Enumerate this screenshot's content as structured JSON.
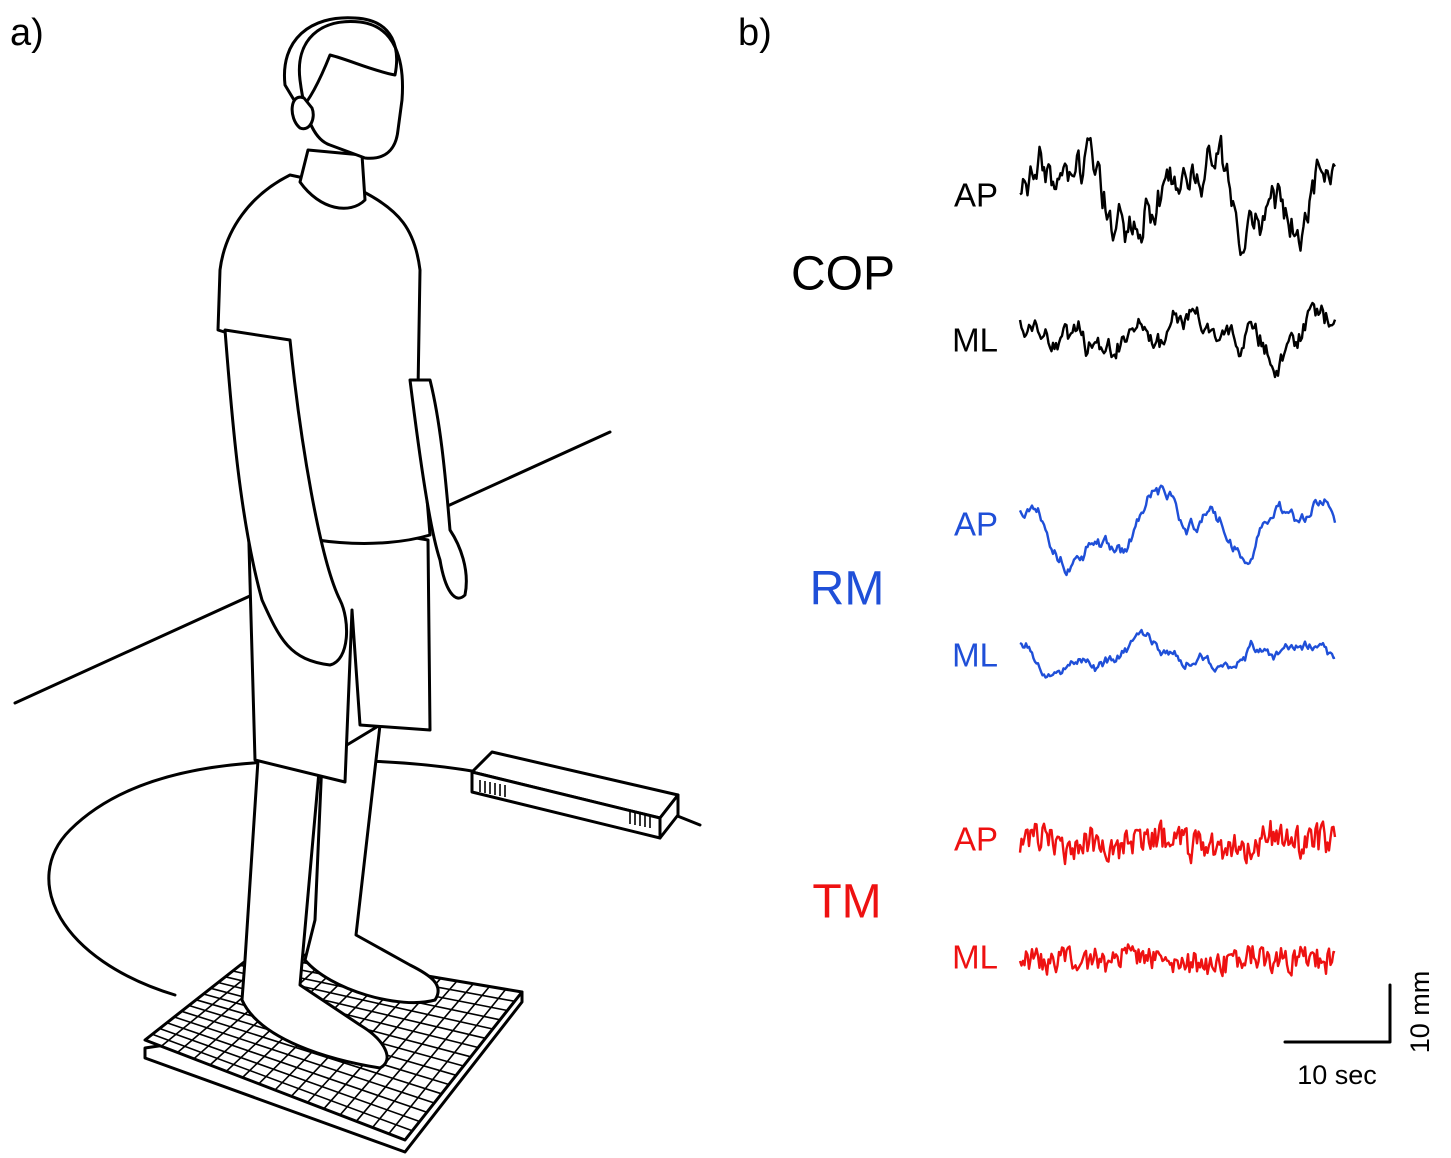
{
  "panels": {
    "a": {
      "label": "a)"
    },
    "b": {
      "label": "b)",
      "groups": [
        {
          "name": "COP",
          "color": "#000000",
          "traces": [
            "AP",
            "ML"
          ]
        },
        {
          "name": "RM",
          "color": "#1f4fd8",
          "traces": [
            "AP",
            "ML"
          ]
        },
        {
          "name": "TM",
          "color": "#ee1111",
          "traces": [
            "AP",
            "ML"
          ]
        }
      ],
      "scale_bar": {
        "x_label": "10 sec",
        "y_label": "10 mm"
      }
    }
  }
}
